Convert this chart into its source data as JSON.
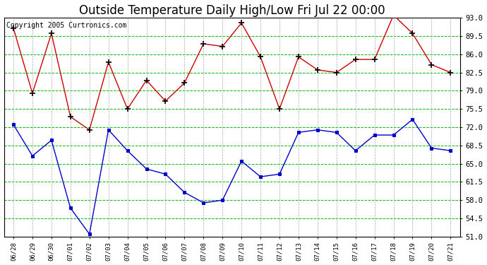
{
  "title": "Outside Temperature Daily High/Low Fri Jul 22 00:00",
  "copyright": "Copyright 2005 Curtronics.com",
  "x_labels": [
    "06/28",
    "06/29",
    "06/30",
    "07/01",
    "07/02",
    "07/03",
    "07/04",
    "07/05",
    "07/06",
    "07/07",
    "07/08",
    "07/09",
    "07/10",
    "07/11",
    "07/12",
    "07/13",
    "07/14",
    "07/15",
    "07/16",
    "07/17",
    "07/18",
    "07/19",
    "07/20",
    "07/21"
  ],
  "high_temps": [
    91.0,
    78.5,
    90.0,
    74.0,
    71.5,
    84.5,
    75.5,
    81.0,
    77.0,
    80.5,
    88.0,
    87.5,
    92.0,
    85.5,
    75.5,
    85.5,
    83.0,
    82.5,
    85.0,
    85.0,
    93.5,
    90.0,
    84.0,
    82.5
  ],
  "low_temps": [
    72.5,
    66.5,
    69.5,
    56.5,
    51.5,
    71.5,
    67.5,
    64.0,
    63.0,
    59.5,
    57.5,
    58.0,
    65.5,
    62.5,
    63.0,
    71.0,
    71.5,
    71.0,
    67.5,
    70.5,
    70.5,
    73.5,
    68.0,
    67.5
  ],
  "high_color": "#cc0000",
  "low_color": "#0000cc",
  "bg_color": "#ffffff",
  "plot_bg_color": "#ffffff",
  "grid_h_color": "#00bb00",
  "grid_v_color": "#aaaaaa",
  "yticks": [
    51.0,
    54.5,
    58.0,
    61.5,
    65.0,
    68.5,
    72.0,
    75.5,
    79.0,
    82.5,
    86.0,
    89.5,
    93.0
  ],
  "ylim": [
    51.0,
    93.0
  ],
  "title_fontsize": 12,
  "copyright_fontsize": 7,
  "figwidth": 6.9,
  "figheight": 3.75,
  "dpi": 100
}
